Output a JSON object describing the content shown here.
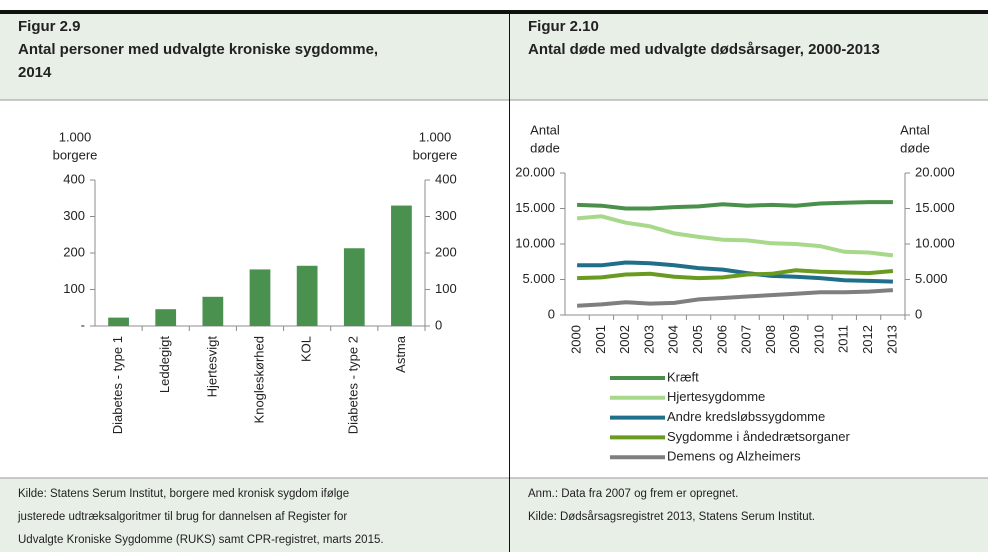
{
  "panels": [
    {
      "figure": "Figur 2.9",
      "title": [
        "Antal personer med udvalgte kroniske sygdomme,",
        "2014"
      ],
      "chart_data": {
        "type": "bar",
        "ylabel": [
          "1.000",
          "borgere"
        ],
        "y2label": [
          "1.000",
          "borgere"
        ],
        "categories": [
          "Diabetes - type 1",
          "Leddegigt",
          "Hjertesvigt",
          "Knogleskørhed",
          "KOL",
          "Diabetes - type 2",
          "Astma"
        ],
        "values": [
          23,
          46,
          80,
          155,
          165,
          213,
          330
        ],
        "color": "#4a9150",
        "ylim": [
          0,
          400
        ],
        "yticks": [
          {
            "value": 0,
            "label": "-"
          },
          100,
          200,
          300,
          400
        ],
        "y2lim": [
          0,
          400
        ],
        "y2ticks": [
          0,
          100,
          200,
          300,
          400
        ]
      },
      "notes": [
        "Kilde: Statens Serum Institut, borgere med kronisk sygdom ifølge",
        "justerede udtræksalgoritmer til brug for dannelsen af Register for",
        "Udvalgte Kroniske Sygdomme (RUKS) samt CPR-registret, marts 2015."
      ]
    },
    {
      "figure": "Figur 2.10",
      "title": [
        "Antal døde med udvalgte dødsårsager, 2000-2013"
      ],
      "chart_data": {
        "type": "line",
        "ylabel": [
          "Antal",
          "døde"
        ],
        "y2label": [
          "Antal",
          "døde"
        ],
        "categories": [
          "2000",
          "2001",
          "2002",
          "2003",
          "2004",
          "2005",
          "2006",
          "2007",
          "2008",
          "2009",
          "2010",
          "2011",
          "2012",
          "2013"
        ],
        "series": [
          {
            "name": "Kræft",
            "color": "#4a8f4a",
            "values": [
              15500,
              15400,
              15000,
              15000,
              15200,
              15300,
              15600,
              15400,
              15500,
              15400,
              15700,
              15800,
              15900,
              15900
            ]
          },
          {
            "name": "Hjertesygdomme",
            "color": "#a8d88a",
            "values": [
              13600,
              13900,
              13000,
              12500,
              11500,
              11000,
              10600,
              10500,
              10100,
              10000,
              9700,
              8900,
              8800,
              8400
            ]
          },
          {
            "name": "Andre kredsløbssygdomme",
            "color": "#1f6f8b",
            "values": [
              7000,
              7000,
              7400,
              7300,
              7000,
              6600,
              6400,
              5900,
              5500,
              5400,
              5200,
              4900,
              4800,
              4700
            ]
          },
          {
            "name": "Sygdomme i åndedrætsorganer",
            "color": "#6a9a1f",
            "values": [
              5200,
              5300,
              5700,
              5800,
              5400,
              5200,
              5300,
              5700,
              5800,
              6300,
              6100,
              6000,
              5900,
              6200
            ]
          },
          {
            "name": "Demens og Alzheimers",
            "color": "#7f7f7f",
            "values": [
              1300,
              1500,
              1800,
              1600,
              1700,
              2200,
              2400,
              2600,
              2800,
              3000,
              3200,
              3200,
              3300,
              3500
            ]
          }
        ],
        "ylim": [
          0,
          20000
        ],
        "yticks": [
          0,
          {
            "value": 5000,
            "label": "5.000"
          },
          {
            "value": 10000,
            "label": "10.000"
          },
          {
            "value": 15000,
            "label": "15.000"
          },
          {
            "value": 20000,
            "label": "20.000"
          }
        ],
        "y2lim": [
          0,
          20000
        ],
        "y2ticks": [
          0,
          {
            "value": 5000,
            "label": "5.000"
          },
          {
            "value": 10000,
            "label": "10.000"
          },
          {
            "value": 15000,
            "label": "15.000"
          },
          {
            "value": 20000,
            "label": "20.000"
          }
        ]
      },
      "notes": [
        "Anm.: Data fra 2007 og frem er opregnet.",
        "Kilde: Dødsårsagsregistret 2013, Statens Serum Institut."
      ]
    }
  ]
}
